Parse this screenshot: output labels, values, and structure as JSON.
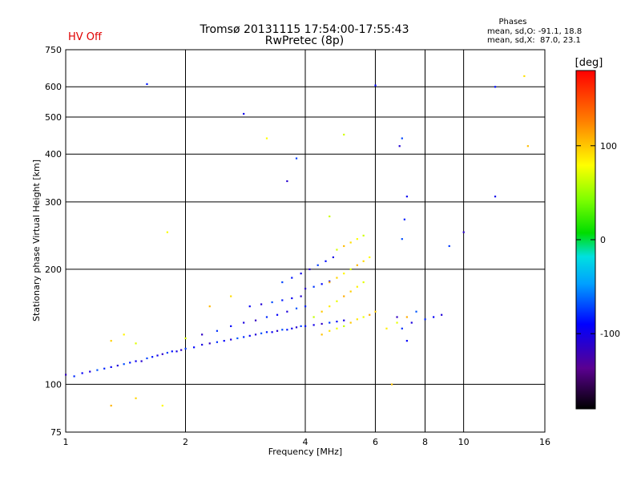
{
  "status": {
    "text": "HV Off",
    "color": "#e00000"
  },
  "phases": {
    "heading": "Phases",
    "line_o": "mean, sd,O: -91.1, 18.8",
    "line_x": "mean, sd,X:  87.0, 23.1"
  },
  "chart_data": {
    "type": "scatter",
    "title": "Tromsø 20131115 17:54:00-17:55:43",
    "subtitle": "RwPretec (8p)",
    "xlabel": "Frequency [MHz]",
    "ylabel": "Stationary phase Virtual Height [km]",
    "x_scale": "log",
    "y_scale": "log",
    "xlim": [
      1,
      16
    ],
    "ylim": [
      75,
      750
    ],
    "x_ticks": [
      1,
      2,
      4,
      6,
      8,
      10,
      16
    ],
    "x_tick_labels": [
      "1",
      "2",
      "4",
      "6",
      "8",
      "10",
      "16"
    ],
    "y_ticks": [
      75,
      100,
      200,
      300,
      400,
      500,
      600,
      750
    ],
    "y_tick_labels": [
      "75",
      "100",
      "200",
      "300",
      "400",
      "500",
      "600",
      "750"
    ],
    "grid": true,
    "colorbar": {
      "label": "[deg]",
      "range": [
        -180,
        180
      ],
      "ticks": [
        100,
        0,
        -100
      ],
      "tick_labels": [
        "100",
        "0",
        "-100"
      ]
    },
    "series": [
      {
        "name": "O",
        "color_phase": -91,
        "points": [
          [
            1.0,
            106
          ],
          [
            1.05,
            105
          ],
          [
            1.1,
            107
          ],
          [
            1.15,
            108
          ],
          [
            1.2,
            109
          ],
          [
            1.25,
            110
          ],
          [
            1.3,
            111
          ],
          [
            1.35,
            112
          ],
          [
            1.4,
            113
          ],
          [
            1.45,
            114
          ],
          [
            1.5,
            115
          ],
          [
            1.55,
            115
          ],
          [
            1.6,
            117
          ],
          [
            1.65,
            118
          ],
          [
            1.7,
            119
          ],
          [
            1.75,
            120
          ],
          [
            1.8,
            121
          ],
          [
            1.85,
            122
          ],
          [
            1.9,
            122
          ],
          [
            1.95,
            123
          ],
          [
            2.0,
            124
          ],
          [
            2.1,
            125
          ],
          [
            2.2,
            127
          ],
          [
            2.3,
            128
          ],
          [
            2.4,
            129
          ],
          [
            2.5,
            130
          ],
          [
            2.6,
            131
          ],
          [
            2.7,
            132
          ],
          [
            2.8,
            133
          ],
          [
            2.9,
            134
          ],
          [
            3.0,
            135
          ],
          [
            3.1,
            136
          ],
          [
            3.2,
            137
          ],
          [
            3.3,
            137
          ],
          [
            3.4,
            138
          ],
          [
            3.5,
            139
          ],
          [
            3.6,
            139
          ],
          [
            3.7,
            140
          ],
          [
            3.8,
            141
          ],
          [
            3.9,
            142
          ],
          [
            4.0,
            142
          ],
          [
            4.2,
            143
          ],
          [
            4.4,
            144
          ],
          [
            4.6,
            145
          ],
          [
            4.8,
            146
          ],
          [
            5.0,
            147
          ],
          [
            2.2,
            135
          ],
          [
            2.4,
            138
          ],
          [
            2.6,
            142
          ],
          [
            2.8,
            145
          ],
          [
            3.0,
            147
          ],
          [
            3.2,
            150
          ],
          [
            3.4,
            152
          ],
          [
            3.6,
            155
          ],
          [
            3.8,
            158
          ],
          [
            4.0,
            160
          ],
          [
            2.9,
            160
          ],
          [
            3.1,
            162
          ],
          [
            3.3,
            164
          ],
          [
            3.5,
            166
          ],
          [
            3.7,
            168
          ],
          [
            3.9,
            170
          ],
          [
            3.5,
            185
          ],
          [
            3.7,
            190
          ],
          [
            3.9,
            195
          ],
          [
            4.1,
            200
          ],
          [
            4.3,
            205
          ],
          [
            4.5,
            210
          ],
          [
            4.7,
            215
          ],
          [
            4.0,
            178
          ],
          [
            4.2,
            180
          ],
          [
            4.4,
            183
          ],
          [
            4.6,
            186
          ],
          [
            6.8,
            150
          ],
          [
            7.0,
            140
          ],
          [
            7.2,
            130
          ],
          [
            7.4,
            145
          ],
          [
            7.6,
            155
          ],
          [
            8.0,
            148
          ],
          [
            8.4,
            150
          ],
          [
            8.8,
            152
          ],
          [
            7.0,
            240
          ],
          [
            7.1,
            270
          ],
          [
            7.2,
            310
          ],
          [
            6.9,
            420
          ],
          [
            7.0,
            440
          ],
          [
            1.6,
            610
          ],
          [
            2.8,
            510
          ],
          [
            3.6,
            340
          ],
          [
            3.8,
            390
          ],
          [
            12.0,
            600
          ],
          [
            12.0,
            310
          ],
          [
            10.0,
            250
          ],
          [
            9.2,
            230
          ],
          [
            6.0,
            605
          ]
        ]
      },
      {
        "name": "X",
        "color_phase": 87,
        "points": [
          [
            4.2,
            150
          ],
          [
            4.4,
            155
          ],
          [
            4.6,
            160
          ],
          [
            4.8,
            165
          ],
          [
            5.0,
            170
          ],
          [
            5.2,
            175
          ],
          [
            5.4,
            180
          ],
          [
            5.6,
            185
          ],
          [
            4.6,
            185
          ],
          [
            4.8,
            190
          ],
          [
            5.0,
            195
          ],
          [
            5.2,
            200
          ],
          [
            5.4,
            205
          ],
          [
            5.6,
            210
          ],
          [
            5.8,
            215
          ],
          [
            4.8,
            225
          ],
          [
            5.0,
            230
          ],
          [
            5.2,
            235
          ],
          [
            5.4,
            240
          ],
          [
            5.6,
            245
          ],
          [
            4.4,
            135
          ],
          [
            4.6,
            138
          ],
          [
            4.8,
            140
          ],
          [
            5.0,
            142
          ],
          [
            5.2,
            145
          ],
          [
            5.4,
            148
          ],
          [
            5.6,
            150
          ],
          [
            5.8,
            152
          ],
          [
            6.0,
            155
          ],
          [
            6.4,
            140
          ],
          [
            6.8,
            145
          ],
          [
            7.2,
            150
          ],
          [
            1.3,
            130
          ],
          [
            1.4,
            135
          ],
          [
            1.5,
            128
          ],
          [
            1.3,
            88
          ],
          [
            1.5,
            92
          ],
          [
            1.75,
            88
          ],
          [
            2.0,
            132
          ],
          [
            2.3,
            160
          ],
          [
            2.6,
            170
          ],
          [
            3.2,
            440
          ],
          [
            5.0,
            450
          ],
          [
            14.5,
            420
          ],
          [
            14.2,
            640
          ],
          [
            1.8,
            250
          ],
          [
            4.6,
            275
          ],
          [
            6.6,
            100
          ]
        ]
      }
    ]
  }
}
